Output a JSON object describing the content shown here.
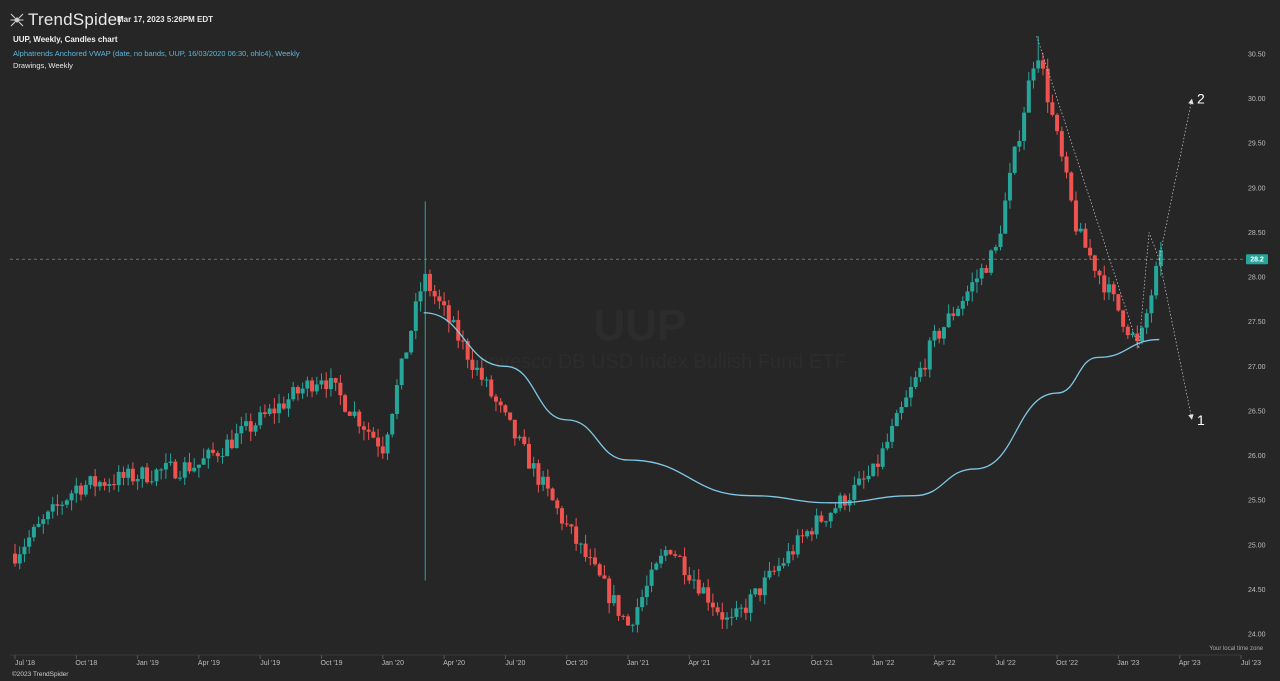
{
  "header": {
    "brand": "TrendSpider",
    "timestamp": "Mar 17, 2023 5:26PM EDT",
    "chart_title": "UUP, Weekly, Candles chart",
    "indicator": "Alphatrends Anchored VWAP (date, no bands, UUP, 16/03/2020 06:30, ohlc4), Weekly",
    "drawings": "Drawings, Weekly"
  },
  "watermark": {
    "ticker": "UUP",
    "name": "Invesco DB USD Index Bullish Fund ETF"
  },
  "footer": {
    "copyright": "©2023 TrendSpider",
    "local_time_zone": "Your local time zone"
  },
  "colors": {
    "background": "#262626",
    "up": "#26a69a",
    "down": "#ef5350",
    "vwap": "#7fc8e6",
    "price_tag": "#26a69a",
    "axis_text": "#bdbdbd"
  },
  "chart_data": {
    "type": "candlestick",
    "symbol": "UUP",
    "interval": "Weekly",
    "x_ticks": [
      "Jul '18",
      "Oct '18",
      "Jan '19",
      "Apr '19",
      "Jul '19",
      "Oct '19",
      "Jan '20",
      "Apr '20",
      "Jul '20",
      "Oct '20",
      "Jan '21",
      "Apr '21",
      "Jul '21",
      "Oct '21",
      "Jan '22",
      "Apr '22",
      "Jul '22",
      "Oct '22",
      "Jan '23",
      "Apr '23",
      "Jul '23"
    ],
    "y_ticks": [
      "30.50",
      "30.00",
      "29.50",
      "29.00",
      "28.50",
      "28.00",
      "27.50",
      "27.00",
      "26.50",
      "26.00",
      "25.50",
      "25.00",
      "24.50",
      "24.00"
    ],
    "ylim": [
      23.9,
      30.75
    ],
    "last_price": "28.2",
    "key_points": [
      {
        "date": "Jul '18",
        "close": 24.9
      },
      {
        "date": "Oct '18",
        "close": 25.65
      },
      {
        "date": "Apr '19",
        "close": 25.9
      },
      {
        "date": "Oct '19",
        "close": 26.9
      },
      {
        "date": "Jan '20",
        "close": 26.1
      },
      {
        "date": "Mar '20",
        "close": 28.0,
        "high": 28.85,
        "low": 24.6
      },
      {
        "date": "Jul '20",
        "close": 26.4
      },
      {
        "date": "Oct '20",
        "close": 25.2
      },
      {
        "date": "Jan '21",
        "close": 24.1
      },
      {
        "date": "Mar '21",
        "close": 25.0
      },
      {
        "date": "Jun '21",
        "close": 24.1
      },
      {
        "date": "Oct '21",
        "close": 25.2
      },
      {
        "date": "Jan '22",
        "close": 25.8
      },
      {
        "date": "Apr '22",
        "close": 27.3
      },
      {
        "date": "Jul '22",
        "close": 28.3
      },
      {
        "date": "Sep '22",
        "close": 30.6,
        "high": 30.7
      },
      {
        "date": "Nov '22",
        "close": 28.5
      },
      {
        "date": "Feb '23",
        "close": 27.2
      },
      {
        "date": "Mar '23",
        "close": 28.2
      }
    ],
    "vwap": {
      "name": "Alphatrends Anchored VWAP",
      "anchor": "16/03/2020",
      "points": [
        {
          "date": "Mar '20",
          "value": 27.6
        },
        {
          "date": "Jul '20",
          "value": 27.0
        },
        {
          "date": "Oct '20",
          "value": 26.4
        },
        {
          "date": "Jan '21",
          "value": 25.95
        },
        {
          "date": "Jul '21",
          "value": 25.55
        },
        {
          "date": "Nov '21",
          "value": 25.47
        },
        {
          "date": "Mar '22",
          "value": 25.55
        },
        {
          "date": "Jun '22",
          "value": 25.85
        },
        {
          "date": "Oct '22",
          "value": 26.7
        },
        {
          "date": "Dec '22",
          "value": 27.1
        },
        {
          "date": "Mar '23",
          "value": 27.3
        }
      ]
    },
    "projections": [
      {
        "label": "2",
        "target": 30.0
      },
      {
        "label": "1",
        "target": 26.4
      }
    ]
  }
}
